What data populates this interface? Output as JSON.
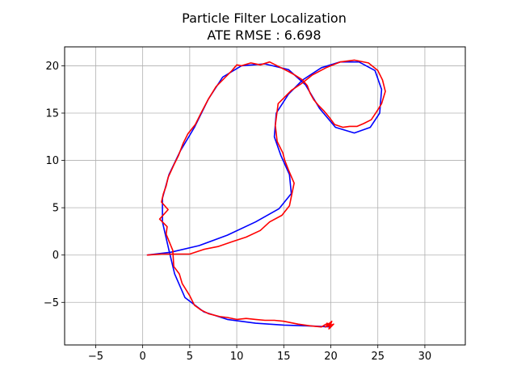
{
  "chart_data": {
    "type": "line",
    "title": "Particle Filter Localization",
    "subtitle": "ATE RMSE : 6.698",
    "xlabel": "",
    "ylabel": "",
    "xlim": [
      -8.3,
      34.3
    ],
    "ylim": [
      -9.5,
      22.0
    ],
    "xticks": [
      -5,
      0,
      5,
      10,
      15,
      20,
      25,
      30
    ],
    "yticks": [
      -5,
      0,
      5,
      10,
      15,
      20
    ],
    "xtick_labels": [
      "−5",
      "0",
      "5",
      "10",
      "15",
      "20",
      "25",
      "30"
    ],
    "ytick_labels": [
      "−5",
      "0",
      "5",
      "10",
      "15",
      "20"
    ],
    "grid": true,
    "series": [
      {
        "color": "#0000ff",
        "points": [
          [
            0.5,
            0.0
          ],
          [
            3.0,
            0.3
          ],
          [
            6.0,
            1.0
          ],
          [
            9.0,
            2.1
          ],
          [
            12.0,
            3.5
          ],
          [
            14.5,
            4.9
          ],
          [
            15.8,
            6.5
          ],
          [
            15.6,
            8.5
          ],
          [
            14.7,
            10.5
          ],
          [
            14.0,
            12.5
          ],
          [
            14.2,
            15.0
          ],
          [
            15.5,
            17.0
          ],
          [
            17.0,
            18.5
          ],
          [
            19.0,
            19.8
          ],
          [
            21.0,
            20.4
          ],
          [
            23.0,
            20.4
          ],
          [
            24.7,
            19.5
          ],
          [
            25.4,
            17.5
          ],
          [
            25.2,
            15.0
          ],
          [
            24.2,
            13.5
          ],
          [
            22.5,
            12.9
          ],
          [
            20.5,
            13.5
          ],
          [
            18.8,
            15.5
          ],
          [
            17.3,
            18.0
          ],
          [
            15.5,
            19.6
          ],
          [
            13.0,
            20.2
          ],
          [
            10.5,
            20.0
          ],
          [
            8.5,
            18.8
          ],
          [
            7.0,
            16.5
          ],
          [
            5.5,
            13.5
          ],
          [
            4.0,
            11.0
          ],
          [
            2.8,
            8.5
          ],
          [
            2.1,
            6.0
          ],
          [
            2.1,
            3.5
          ],
          [
            2.8,
            0.5
          ],
          [
            3.4,
            -2.0
          ],
          [
            4.5,
            -4.5
          ],
          [
            6.5,
            -6.0
          ],
          [
            9.0,
            -6.8
          ],
          [
            12.0,
            -7.2
          ],
          [
            15.0,
            -7.4
          ],
          [
            18.0,
            -7.5
          ],
          [
            20.0,
            -7.6
          ]
        ]
      },
      {
        "color": "#ff0000",
        "points": [
          [
            0.5,
            0.0
          ],
          [
            2.0,
            0.1
          ],
          [
            3.5,
            0.1
          ],
          [
            5.0,
            0.1
          ],
          [
            6.5,
            0.6
          ],
          [
            8.0,
            0.9
          ],
          [
            9.5,
            1.4
          ],
          [
            11.0,
            1.9
          ],
          [
            12.5,
            2.6
          ],
          [
            13.5,
            3.5
          ],
          [
            14.8,
            4.2
          ],
          [
            15.6,
            5.2
          ],
          [
            16.1,
            7.6
          ],
          [
            15.5,
            9.0
          ],
          [
            15.1,
            10.0
          ],
          [
            14.9,
            10.8
          ],
          [
            14.3,
            12.0
          ],
          [
            14.1,
            13.7
          ],
          [
            14.4,
            16.0
          ],
          [
            15.0,
            16.6
          ],
          [
            15.8,
            17.4
          ],
          [
            17.0,
            18.2
          ],
          [
            18.0,
            19.0
          ],
          [
            19.5,
            19.8
          ],
          [
            21.0,
            20.4
          ],
          [
            22.5,
            20.6
          ],
          [
            24.0,
            20.3
          ],
          [
            25.0,
            19.5
          ],
          [
            25.5,
            18.5
          ],
          [
            25.8,
            17.3
          ],
          [
            25.4,
            16.0
          ],
          [
            24.9,
            15.2
          ],
          [
            24.3,
            14.3
          ],
          [
            23.5,
            13.9
          ],
          [
            22.8,
            13.6
          ],
          [
            22.0,
            13.6
          ],
          [
            21.3,
            13.5
          ],
          [
            20.4,
            13.8
          ],
          [
            19.8,
            14.6
          ],
          [
            19.3,
            15.2
          ],
          [
            18.7,
            15.8
          ],
          [
            18.2,
            16.4
          ],
          [
            17.8,
            17.1
          ],
          [
            17.5,
            17.9
          ],
          [
            17.0,
            18.5
          ],
          [
            16.2,
            19.0
          ],
          [
            15.5,
            19.4
          ],
          [
            14.7,
            19.8
          ],
          [
            13.5,
            20.4
          ],
          [
            12.5,
            20.1
          ],
          [
            11.5,
            20.3
          ],
          [
            10.5,
            20.0
          ],
          [
            10.0,
            20.1
          ],
          [
            9.5,
            19.5
          ],
          [
            8.8,
            18.8
          ],
          [
            7.8,
            17.8
          ],
          [
            7.0,
            16.5
          ],
          [
            6.3,
            15.2
          ],
          [
            5.6,
            13.8
          ],
          [
            4.8,
            12.8
          ],
          [
            4.3,
            11.8
          ],
          [
            3.8,
            10.5
          ],
          [
            3.3,
            9.5
          ],
          [
            2.7,
            8.2
          ],
          [
            2.5,
            7.3
          ],
          [
            2.2,
            6.5
          ],
          [
            2.0,
            5.6
          ],
          [
            2.7,
            4.8
          ],
          [
            1.8,
            3.8
          ],
          [
            2.6,
            3.0
          ],
          [
            2.5,
            2.2
          ],
          [
            3.2,
            0.5
          ],
          [
            3.3,
            -1.2
          ],
          [
            3.9,
            -2.0
          ],
          [
            4.2,
            -3.0
          ],
          [
            5.0,
            -4.3
          ],
          [
            5.5,
            -5.3
          ],
          [
            6.2,
            -5.8
          ],
          [
            7.0,
            -6.2
          ],
          [
            8.2,
            -6.5
          ],
          [
            9.0,
            -6.6
          ],
          [
            10.0,
            -6.8
          ],
          [
            11.0,
            -6.7
          ],
          [
            12.0,
            -6.8
          ],
          [
            13.0,
            -6.9
          ],
          [
            14.0,
            -6.9
          ],
          [
            15.0,
            -7.0
          ],
          [
            16.5,
            -7.3
          ],
          [
            18.0,
            -7.5
          ],
          [
            19.0,
            -7.6
          ],
          [
            19.5,
            -7.3
          ],
          [
            20.0,
            -7.5
          ],
          [
            19.6,
            -7.2
          ],
          [
            20.2,
            -7.4
          ],
          [
            19.4,
            -7.6
          ],
          [
            20.1,
            -7.0
          ],
          [
            19.8,
            -7.8
          ],
          [
            20.3,
            -7.3
          ],
          [
            19.9,
            -7.5
          ]
        ]
      }
    ]
  }
}
